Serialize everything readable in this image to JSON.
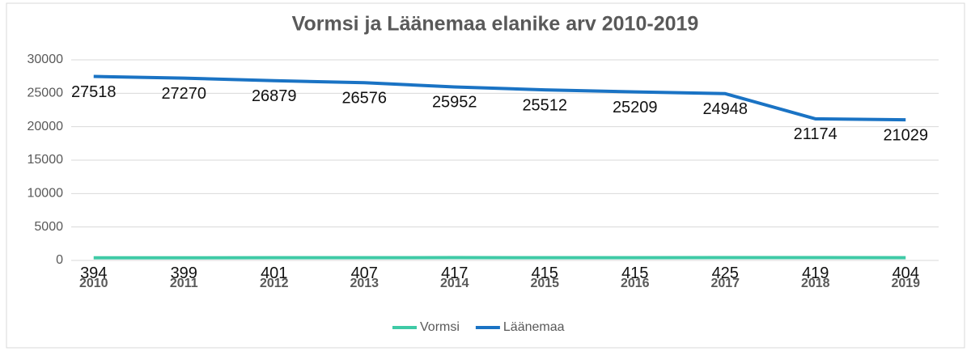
{
  "chart_data": {
    "type": "line",
    "title": "Vormsi ja Läänemaa elanike arv 2010-2019",
    "categories": [
      "2010",
      "2011",
      "2012",
      "2013",
      "2014",
      "2015",
      "2016",
      "2017",
      "2018",
      "2019"
    ],
    "series": [
      {
        "name": "Vormsi",
        "color": "#3fcaa6",
        "values": [
          394,
          399,
          401,
          407,
          417,
          415,
          415,
          425,
          419,
          404
        ]
      },
      {
        "name": "Läänemaa",
        "color": "#1a73c4",
        "values": [
          27518,
          27270,
          26879,
          26576,
          25952,
          25512,
          25209,
          24948,
          21174,
          21029
        ]
      }
    ],
    "ylim": [
      0,
      30000
    ],
    "yticks": [
      0,
      5000,
      10000,
      15000,
      20000,
      25000,
      30000
    ],
    "grid": true,
    "legend": "bottom"
  }
}
